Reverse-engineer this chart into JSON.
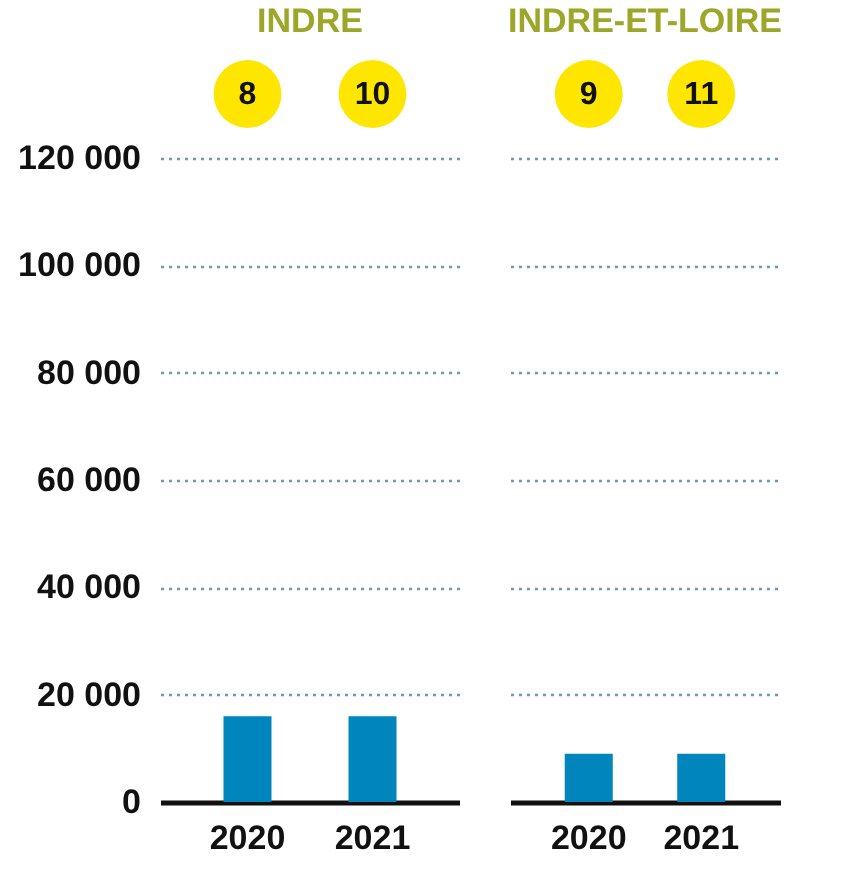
{
  "chart_data": [
    {
      "type": "bar",
      "title": "INDRE",
      "categories": [
        "2020",
        "2021"
      ],
      "values": [
        16000,
        16000
      ],
      "color": "#0085bd",
      "ylim": [
        0,
        120000
      ],
      "yticks": [
        0,
        {
          "value": 20000,
          "label": "20 000"
        },
        {
          "value": 40000,
          "label": "40 000"
        },
        {
          "value": 60000,
          "label": "60 000"
        },
        {
          "value": 80000,
          "label": "80 000"
        },
        {
          "value": 100000,
          "label": "100 000"
        },
        {
          "value": 120000,
          "label": "120 000"
        }
      ],
      "grid": "y",
      "annotations": [
        "8",
        "10"
      ]
    },
    {
      "type": "bar",
      "title": "INDRE-ET-LOIRE",
      "categories": [
        "2020",
        "2021"
      ],
      "values": [
        9000,
        9000
      ],
      "color": "#0085bd",
      "ylim": [
        0,
        120000
      ],
      "yticks": [
        0,
        20000,
        40000,
        60000,
        80000,
        100000,
        120000
      ],
      "grid": "y",
      "tick_labels": "x",
      "annotations": [
        "9",
        "11"
      ]
    }
  ]
}
